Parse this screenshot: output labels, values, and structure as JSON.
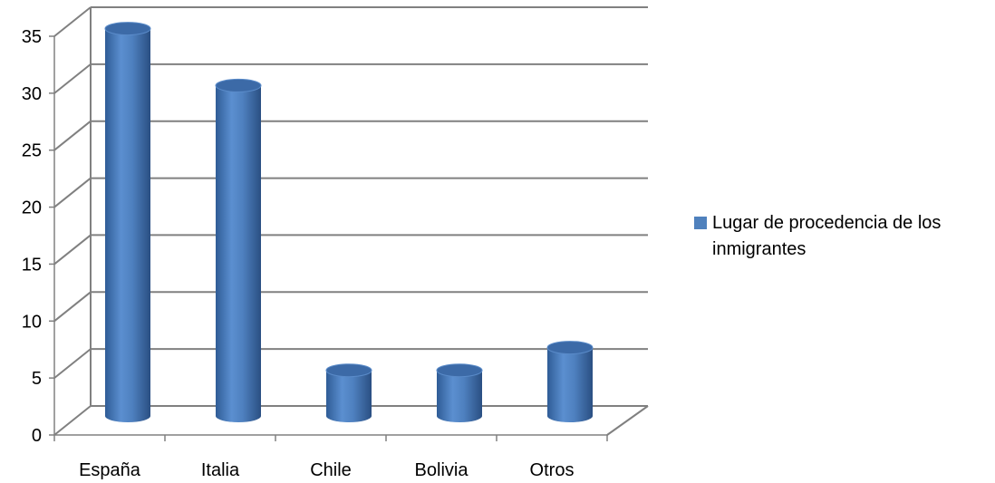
{
  "chart_data": {
    "type": "bar",
    "categories": [
      "España",
      "Italia",
      "Chile",
      "Bolivia",
      "Otros"
    ],
    "series": [
      {
        "name": "Lugar de procedencia de los inmigrantes",
        "values": [
          34,
          29,
          4,
          4,
          6
        ]
      }
    ],
    "ylim": [
      0,
      35
    ],
    "yticks": [
      0,
      5,
      10,
      15,
      20,
      25,
      30,
      35
    ],
    "grid": true,
    "legend_position": "right",
    "colors": {
      "bar": "#4F81BD",
      "grid": "#808080",
      "axis": "#808080"
    },
    "style": "3d-cylinder"
  }
}
